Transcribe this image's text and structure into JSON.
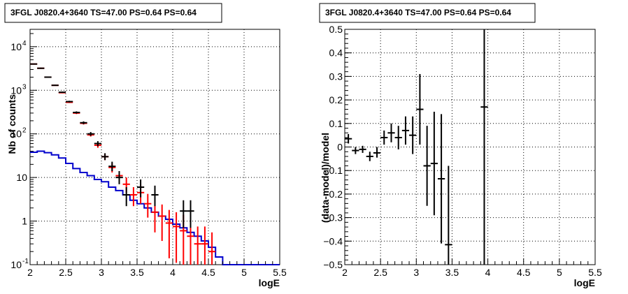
{
  "colors": {
    "data": "#000000",
    "model": "#ff0000",
    "background": "#0000cc",
    "grid": "#000000"
  },
  "chart_data": [
    {
      "type": "line",
      "title": "3FGL J0820.4+3640 TS=47.00 PS=0.64 PS=0.64",
      "xlabel": "logE",
      "ylabel": "Nb of counts",
      "xlim": [
        2,
        5.5
      ],
      "ylim": [
        0.1,
        25000
      ],
      "yscale": "log",
      "grid": true,
      "x_ticks": [
        "2",
        "2.5",
        "3",
        "3.5",
        "4",
        "4.5",
        "5",
        "5.5"
      ],
      "y_ticks": [
        "10^-1",
        "1",
        "10",
        "10^2",
        "10^3",
        "10^4"
      ],
      "bin_edges": [
        2.0,
        2.1,
        2.2,
        2.3,
        2.4,
        2.5,
        2.6,
        2.7,
        2.8,
        2.9,
        3.0,
        3.1,
        3.2,
        3.3,
        3.4,
        3.5,
        3.6,
        3.7,
        3.8,
        3.9,
        4.0,
        4.1,
        4.2,
        4.3,
        4.4,
        4.5,
        4.6,
        4.7,
        4.8,
        4.9,
        5.0,
        5.1,
        5.2,
        5.3,
        5.4,
        5.5
      ],
      "series": [
        {
          "name": "data",
          "points": [
            {
              "x": 2.05,
              "y": 4000,
              "lo": 3900,
              "hi": 4100
            },
            {
              "x": 2.15,
              "y": 3200,
              "lo": 3100,
              "hi": 3300
            },
            {
              "x": 2.25,
              "y": 2000,
              "lo": 1950,
              "hi": 2050
            },
            {
              "x": 2.35,
              "y": 1300,
              "lo": 1260,
              "hi": 1340
            },
            {
              "x": 2.45,
              "y": 900,
              "lo": 870,
              "hi": 930
            },
            {
              "x": 2.55,
              "y": 550,
              "lo": 525,
              "hi": 575
            },
            {
              "x": 2.65,
              "y": 310,
              "lo": 292,
              "hi": 328
            },
            {
              "x": 2.75,
              "y": 180,
              "lo": 167,
              "hi": 193
            },
            {
              "x": 2.85,
              "y": 100,
              "lo": 90,
              "hi": 110
            },
            {
              "x": 2.95,
              "y": 60,
              "lo": 52,
              "hi": 68
            },
            {
              "x": 3.05,
              "y": 30,
              "lo": 25,
              "hi": 36
            },
            {
              "x": 3.15,
              "y": 18,
              "lo": 14,
              "hi": 23
            },
            {
              "x": 3.25,
              "y": 10,
              "lo": 7,
              "hi": 14
            },
            {
              "x": 3.35,
              "y": 4,
              "lo": 2.2,
              "hi": 6
            },
            {
              "x": 3.55,
              "y": 6,
              "lo": 3.5,
              "hi": 9
            },
            {
              "x": 3.75,
              "y": 4,
              "lo": 2.2,
              "hi": 6.5
            },
            {
              "x": 4.15,
              "y": 1.7,
              "lo": 0.7,
              "hi": 3
            },
            {
              "x": 4.25,
              "y": 1.7,
              "lo": 0.7,
              "hi": 3
            }
          ]
        },
        {
          "name": "model",
          "points": [
            {
              "x": 2.05,
              "y": 4000,
              "lo": 3930,
              "hi": 4070
            },
            {
              "x": 2.15,
              "y": 3200,
              "lo": 3140,
              "hi": 3260
            },
            {
              "x": 2.25,
              "y": 2000,
              "lo": 1960,
              "hi": 2040
            },
            {
              "x": 2.35,
              "y": 1300,
              "lo": 1270,
              "hi": 1330
            },
            {
              "x": 2.45,
              "y": 880,
              "lo": 855,
              "hi": 905
            },
            {
              "x": 2.55,
              "y": 530,
              "lo": 510,
              "hi": 550
            },
            {
              "x": 2.65,
              "y": 300,
              "lo": 285,
              "hi": 315
            },
            {
              "x": 2.75,
              "y": 175,
              "lo": 164,
              "hi": 186
            },
            {
              "x": 2.85,
              "y": 95,
              "lo": 87,
              "hi": 103
            },
            {
              "x": 2.95,
              "y": 55,
              "lo": 48,
              "hi": 62
            },
            {
              "x": 3.05,
              "y": 30,
              "lo": 25,
              "hi": 35
            },
            {
              "x": 3.15,
              "y": 17,
              "lo": 13,
              "hi": 21
            },
            {
              "x": 3.25,
              "y": 11,
              "lo": 8,
              "hi": 14
            },
            {
              "x": 3.35,
              "y": 7,
              "lo": 4.5,
              "hi": 10
            },
            {
              "x": 3.45,
              "y": 4,
              "lo": 2.2,
              "hi": 6
            },
            {
              "x": 3.55,
              "y": 4.5,
              "lo": 2.5,
              "hi": 6.8
            },
            {
              "x": 3.65,
              "y": 2.5,
              "lo": 1.2,
              "hi": 4.2
            },
            {
              "x": 3.75,
              "y": 1.6,
              "lo": 0.55,
              "hi": 2.8
            },
            {
              "x": 3.85,
              "y": 1.3,
              "lo": 0.35,
              "hi": 2.4
            },
            {
              "x": 3.95,
              "y": 0.9,
              "lo": 0.14,
              "hi": 1.8
            },
            {
              "x": 4.05,
              "y": 0.75,
              "lo": 0.11,
              "hi": 1.6
            },
            {
              "x": 4.15,
              "y": 0.6,
              "lo": 0.1,
              "hi": 1.4
            },
            {
              "x": 4.25,
              "y": 0.45,
              "lo": 0.1,
              "hi": 1.15
            },
            {
              "x": 4.35,
              "y": 0.3,
              "lo": 0.1,
              "hi": 0.75
            },
            {
              "x": 4.45,
              "y": 0.3,
              "lo": 0.1,
              "hi": 0.75
            },
            {
              "x": 4.55,
              "y": 0.2,
              "lo": 0.1,
              "hi": 0.55
            }
          ]
        },
        {
          "name": "background",
          "step": [
            38,
            40,
            37,
            33,
            28,
            21,
            16,
            13,
            11,
            9,
            8,
            6,
            5,
            4,
            3,
            2.5,
            2,
            1.6,
            1.3,
            1.1,
            0.85,
            0.7,
            0.55,
            0.45,
            0.35,
            0.25,
            0.15,
            0.1,
            0.1,
            0.1,
            0.1,
            0.1,
            0.1,
            0.1,
            0.1
          ]
        }
      ]
    },
    {
      "type": "scatter",
      "title": "3FGL J0820.4+3640 TS=47.00 PS=0.64 PS=0.64",
      "xlabel": "logE",
      "ylabel": "(data-model)/model",
      "xlim": [
        2,
        5.5
      ],
      "ylim": [
        -0.5,
        0.5
      ],
      "grid": true,
      "x_ticks": [
        "2",
        "2.5",
        "3",
        "3.5",
        "4",
        "4.5",
        "5",
        "5.5"
      ],
      "y_ticks": [
        "−0.5",
        "−0.4",
        "−0.3",
        "−0.2",
        "−0.1",
        "0",
        "0.1",
        "0.2",
        "0.3",
        "0.4",
        "0.5"
      ],
      "series": [
        {
          "name": "residual",
          "points": [
            {
              "x": 2.05,
              "y": 0.035,
              "lo": 0.015,
              "hi": 0.055
            },
            {
              "x": 2.15,
              "y": -0.015,
              "lo": -0.03,
              "hi": 0.0
            },
            {
              "x": 2.25,
              "y": -0.01,
              "lo": -0.025,
              "hi": 0.005
            },
            {
              "x": 2.35,
              "y": -0.04,
              "lo": -0.06,
              "hi": -0.02
            },
            {
              "x": 2.45,
              "y": -0.025,
              "lo": -0.045,
              "hi": 0.0
            },
            {
              "x": 2.55,
              "y": 0.04,
              "lo": 0.01,
              "hi": 0.07
            },
            {
              "x": 2.65,
              "y": 0.06,
              "lo": 0.02,
              "hi": 0.1
            },
            {
              "x": 2.75,
              "y": 0.04,
              "lo": -0.01,
              "hi": 0.09
            },
            {
              "x": 2.85,
              "y": 0.07,
              "lo": 0.01,
              "hi": 0.13
            },
            {
              "x": 2.95,
              "y": 0.05,
              "lo": -0.03,
              "hi": 0.13
            },
            {
              "x": 3.05,
              "y": 0.16,
              "lo": 0.01,
              "hi": 0.31
            },
            {
              "x": 3.15,
              "y": -0.08,
              "lo": -0.25,
              "hi": 0.09
            },
            {
              "x": 3.25,
              "y": -0.07,
              "lo": -0.29,
              "hi": 0.15
            },
            {
              "x": 3.35,
              "y": -0.135,
              "lo": -0.41,
              "hi": 0.14
            },
            {
              "x": 3.45,
              "y": -0.415,
              "lo": -0.5,
              "hi": -0.08
            },
            {
              "x": 3.95,
              "y": 0.17,
              "lo": -0.5,
              "hi": 0.5
            }
          ]
        }
      ]
    }
  ]
}
